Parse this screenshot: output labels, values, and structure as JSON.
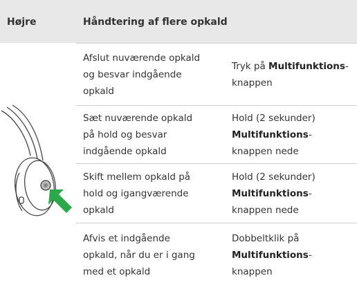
{
  "header": {
    "side": "Højre",
    "title": "Håndtering af flere opkald"
  },
  "rows": [
    {
      "situation": [
        "Afslut nuværende opkald",
        "og besvar indgående",
        "opkald"
      ],
      "action": [
        [
          {
            "text": "Tryk på "
          },
          {
            "text": "Multifunktions",
            "bold": true
          },
          {
            "text": "-"
          }
        ],
        [
          {
            "text": "knappen"
          }
        ]
      ]
    },
    {
      "situation": [
        "Sæt nuværende opkald",
        "på hold og besvar",
        "indgående opkald"
      ],
      "action": [
        [
          {
            "text": "Hold (2 sekunder)"
          }
        ],
        [
          {
            "text": "Multifunktions",
            "bold": true
          },
          {
            "text": "-"
          }
        ],
        [
          {
            "text": "knappen nede"
          }
        ]
      ]
    },
    {
      "situation": [
        "Skift mellem opkald på",
        "hold og igangværende",
        "opkald"
      ],
      "action": [
        [
          {
            "text": "Hold (2 sekunder)"
          }
        ],
        [
          {
            "text": "Multifunktions",
            "bold": true
          },
          {
            "text": "-"
          }
        ],
        [
          {
            "text": "knappen nede"
          }
        ]
      ]
    },
    {
      "situation": [
        "Afvis et indgående",
        "opkald, når du er i gang",
        "med et opkald"
      ],
      "action": [
        [
          {
            "text": "Dobbeltklik på"
          }
        ],
        [
          {
            "text": "Multifunktions",
            "bold": true
          },
          {
            "text": "-"
          }
        ],
        [
          {
            "text": "knappen"
          }
        ]
      ]
    }
  ]
}
